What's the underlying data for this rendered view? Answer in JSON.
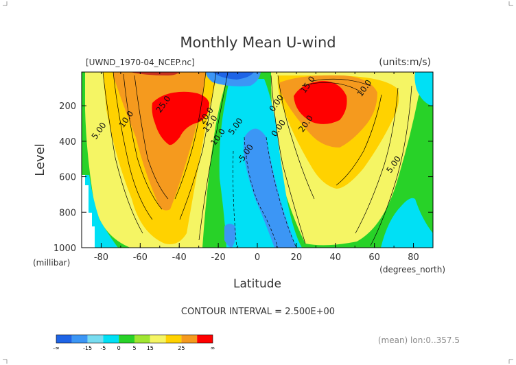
{
  "chart_data": {
    "type": "contour",
    "title": "Monthly Mean U-wind",
    "file_label": "[UWND_1970-04_NCEP.nc]",
    "units_label": "(units:m/s)",
    "ylabel": "Level",
    "yunit": "(millibar)",
    "xlabel": "Latitude",
    "xunit": "(degrees_north)",
    "xlim": [
      -90,
      90
    ],
    "ylim": [
      1000,
      10
    ],
    "x_ticks": [
      -80,
      -60,
      -40,
      -20,
      0,
      20,
      40,
      60,
      80
    ],
    "x_tick_labels": [
      "-80",
      "-60",
      "-40",
      "-20",
      "0",
      "20",
      "40",
      "60",
      "80"
    ],
    "y_ticks": [
      200,
      400,
      600,
      800,
      1000
    ],
    "y_tick_labels": [
      "200",
      "400",
      "600",
      "800",
      "1000"
    ],
    "contour_interval_text": "CONTOUR INTERVAL = 2.500E+00",
    "contour_labels": [
      {
        "text": "25.0",
        "x": -47,
        "y": 200
      },
      {
        "text": "20.0",
        "x": -25,
        "y": 265
      },
      {
        "text": "15.0",
        "x": -23,
        "y": 310
      },
      {
        "text": "10.0",
        "x": -19,
        "y": 385
      },
      {
        "text": "5.00",
        "x": -10,
        "y": 325
      },
      {
        "text": "10.0",
        "x": -66,
        "y": 285
      },
      {
        "text": "5.00",
        "x": -80,
        "y": 350
      },
      {
        "text": "-5.00",
        "x": -5,
        "y": 480
      },
      {
        "text": "0.00",
        "x": 11,
        "y": 195
      },
      {
        "text": "0.00",
        "x": 12,
        "y": 335
      },
      {
        "text": "15.0",
        "x": 27,
        "y": 90
      },
      {
        "text": "10.0",
        "x": 56,
        "y": 110
      },
      {
        "text": "20.0",
        "x": 26,
        "y": 310
      },
      {
        "text": "5.00",
        "x": 71,
        "y": 540
      }
    ],
    "jets": [
      {
        "name": "southern",
        "lat": -47,
        "level": 250,
        "max": 27.5
      },
      {
        "name": "northern",
        "lat": 29,
        "level": 200,
        "max": 27.5
      }
    ],
    "colorbar": {
      "colors": [
        "#1e64e6",
        "#3c96f5",
        "#78dcf0",
        "#00e0f5",
        "#28d228",
        "#a0e632",
        "#f5f564",
        "#ffd200",
        "#f59a1e",
        "#ff0000"
      ],
      "tick_labels": [
        "-∞",
        "-15",
        "-5",
        "0",
        "5",
        "15",
        "25",
        "∞"
      ]
    },
    "footer_text": "(mean) lon:0..357.5"
  }
}
